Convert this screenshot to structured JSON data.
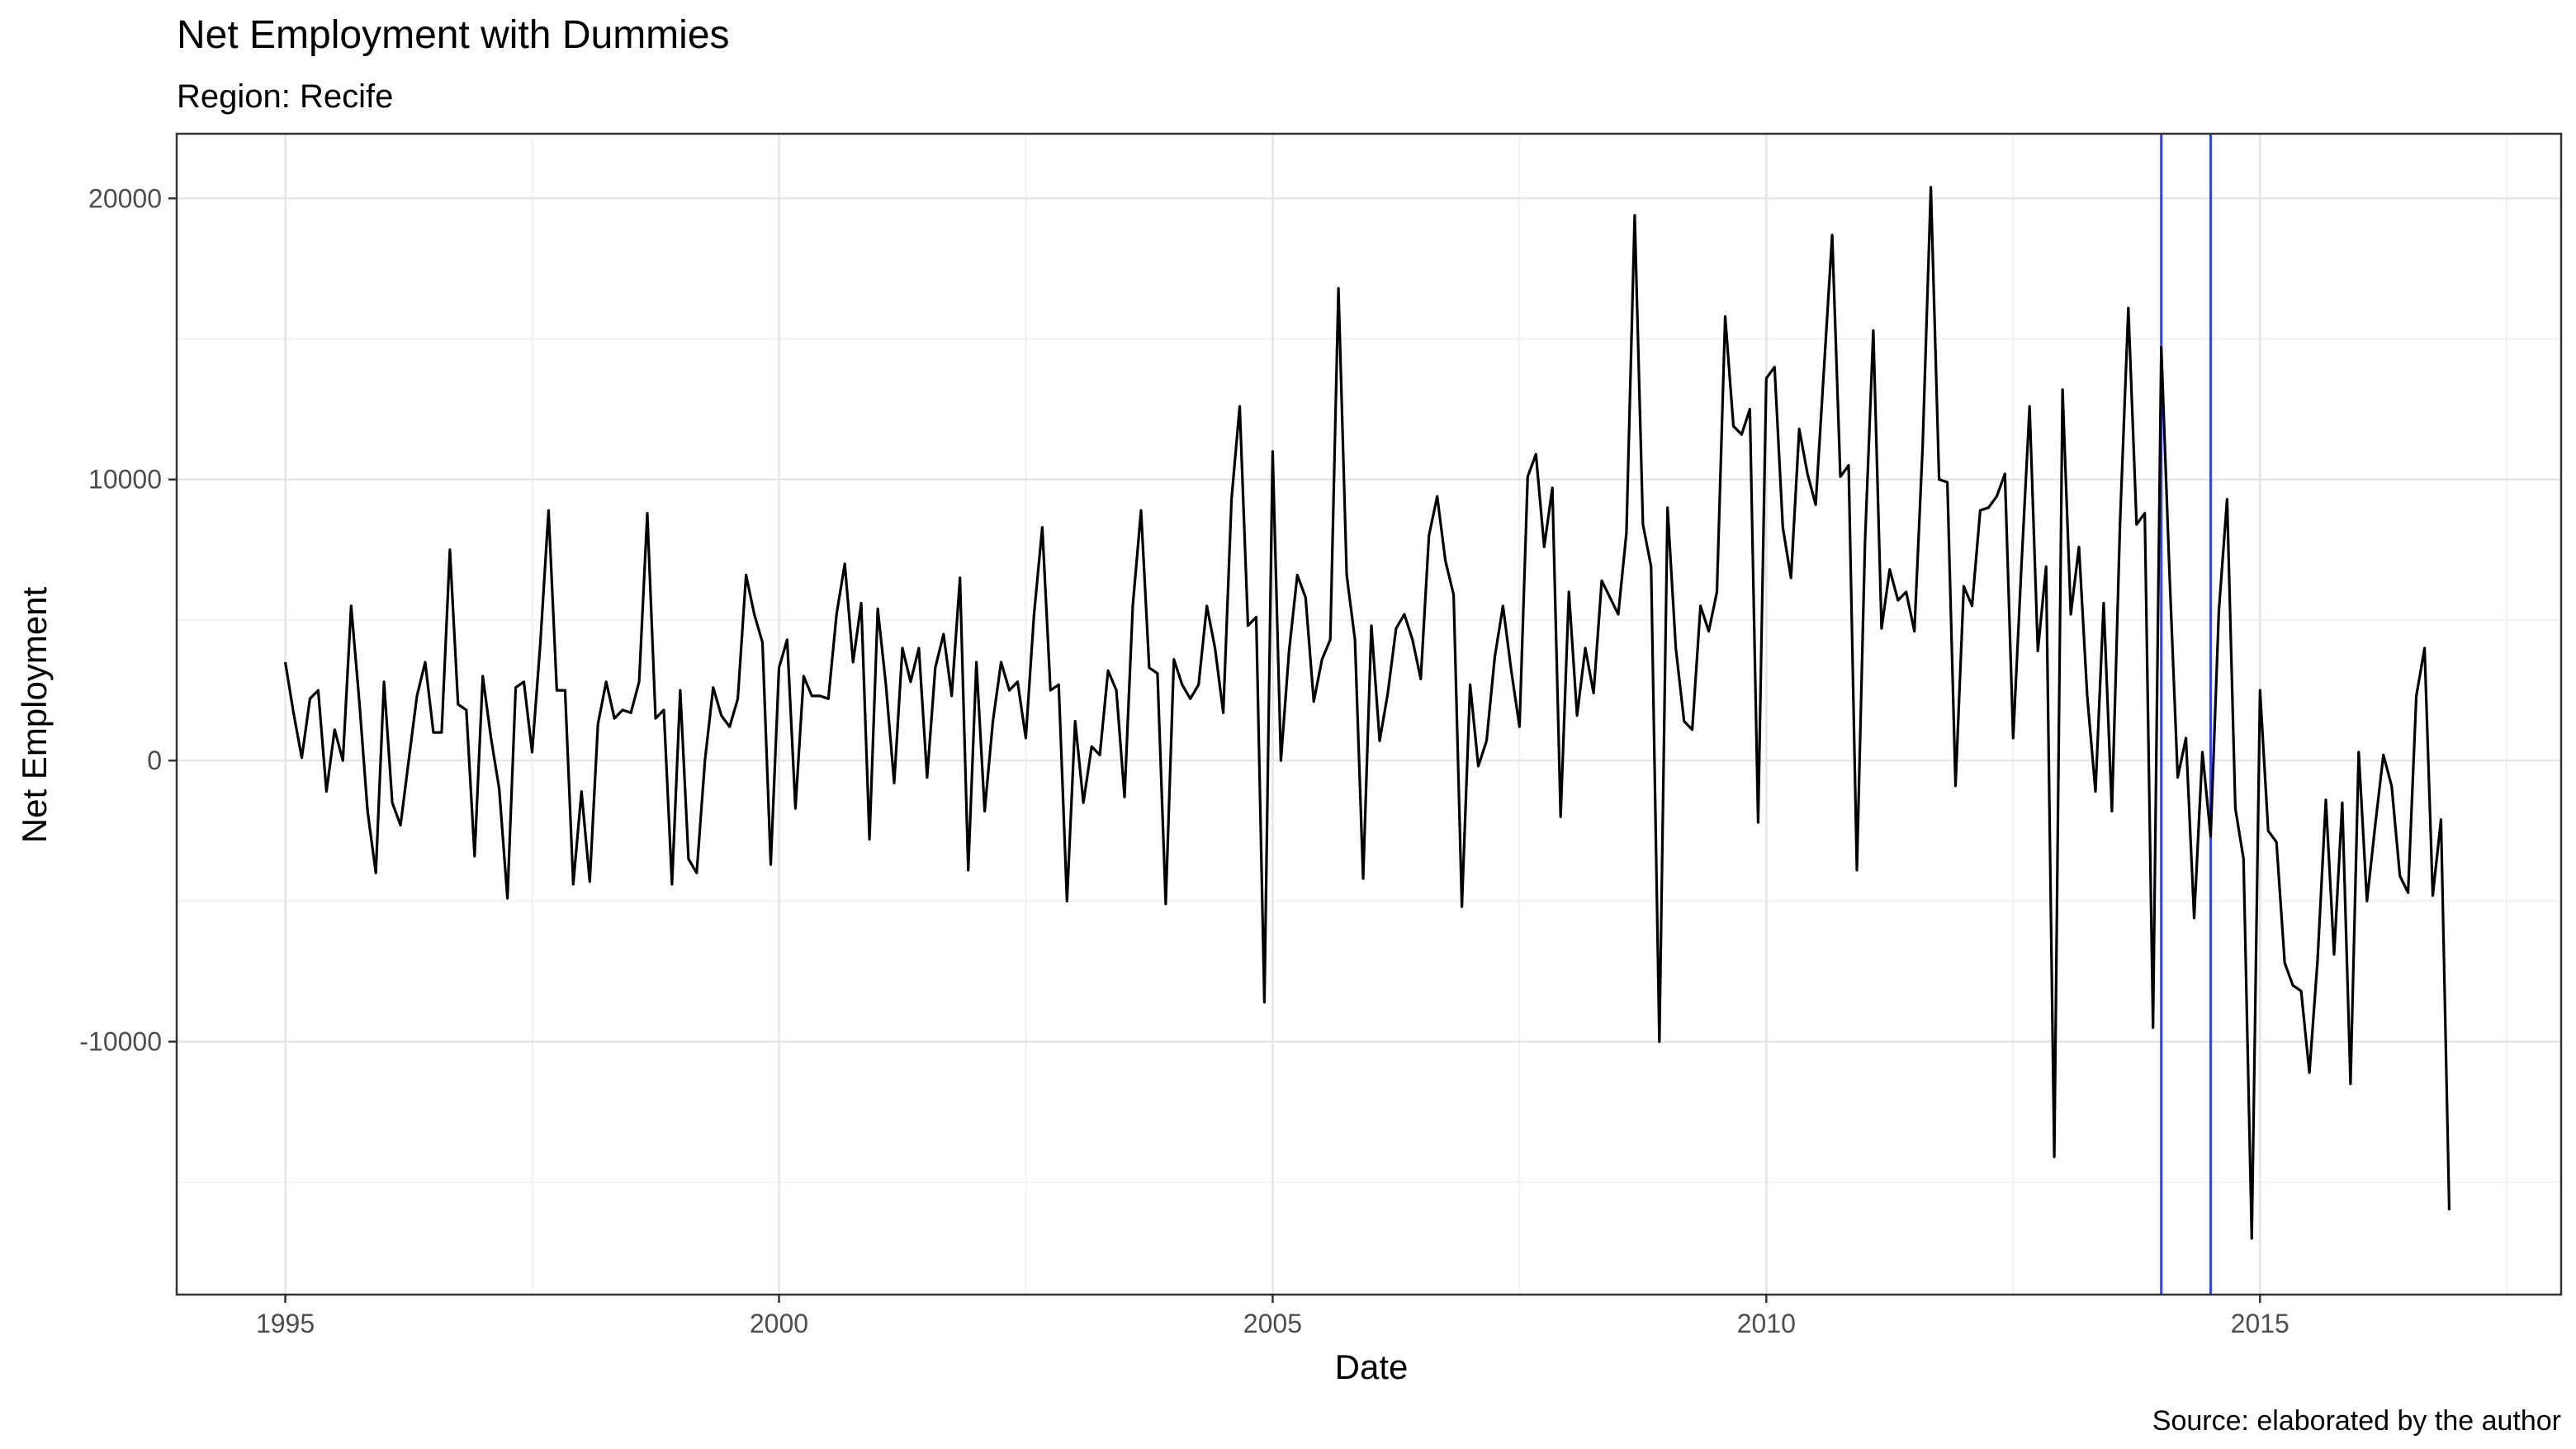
{
  "chart_data": {
    "type": "line",
    "title": "Net Employment with Dummies",
    "subtitle": "Region: Recife",
    "xlabel": "Date",
    "ylabel": "Net Employment",
    "caption": "Source: elaborated by the author",
    "xlim": [
      1993.9,
      2018.05
    ],
    "ylim": [
      -19000,
      22300
    ],
    "x_ticks": [
      1995,
      2000,
      2005,
      2010,
      2015
    ],
    "y_ticks": [
      -10000,
      0,
      10000,
      20000
    ],
    "grid": true,
    "line_color": "#000000",
    "vline_color": "#3344ee",
    "dummy_lines": [
      2014.0,
      2014.5
    ],
    "x_start": 1995.0,
    "x_step": 0.08333333,
    "series": [
      {
        "values": [
          3500,
          1700,
          100,
          2200,
          2500,
          -1100,
          1100,
          0,
          5500,
          2100,
          -1800,
          -4000,
          2800,
          -1500,
          -2300,
          0,
          2300,
          3500,
          1000,
          1000,
          7500,
          2000,
          1800,
          -3400,
          3000,
          800,
          -1000,
          -4900,
          2600,
          2800,
          300,
          4200,
          8900,
          2500,
          2500,
          -4400,
          -1100,
          -4300,
          1300,
          2800,
          1500,
          1800,
          1700,
          2800,
          8800,
          1500,
          1800,
          -4400,
          2500,
          -3500,
          -4000,
          0,
          2600,
          1600,
          1200,
          2200,
          6600,
          5200,
          4200,
          -3700,
          3300,
          4300,
          -1700,
          3000,
          2300,
          2300,
          2200,
          5200,
          7000,
          3500,
          5600,
          -2800,
          5400,
          2700,
          -800,
          4000,
          2800,
          4000,
          -600,
          3300,
          4500,
          2300,
          6500,
          -3900,
          3500,
          -1800,
          1400,
          3500,
          2500,
          2800,
          800,
          5200,
          8300,
          2500,
          2700,
          -5000,
          1400,
          -1500,
          500,
          200,
          3200,
          2500,
          -1300,
          5500,
          8900,
          3300,
          3100,
          -5100,
          3600,
          2700,
          2200,
          2700,
          5500,
          4000,
          1700,
          9300,
          12600,
          4800,
          5100,
          -8600,
          11000,
          0,
          3900,
          6600,
          5800,
          2100,
          3600,
          4300,
          16800,
          6600,
          4300,
          -4200,
          4800,
          700,
          2400,
          4700,
          5200,
          4300,
          2900,
          8000,
          9400,
          7100,
          5900,
          -5200,
          2700,
          -200,
          700,
          3700,
          5500,
          3200,
          1200,
          10100,
          10900,
          7600,
          9700,
          -2000,
          6000,
          1600,
          4000,
          2400,
          6400,
          5800,
          5200,
          8100,
          19400,
          8400,
          6900,
          -10000,
          9000,
          4000,
          1400,
          1100,
          5500,
          4600,
          6000,
          15800,
          11900,
          11600,
          12500,
          -2200,
          13600,
          14000,
          8300,
          6500,
          11800,
          10200,
          9100,
          13900,
          18700,
          10100,
          10500,
          -3900,
          7800,
          15300,
          4700,
          6800,
          5700,
          6000,
          4600,
          11200,
          20400,
          10000,
          9900,
          -900,
          6200,
          5500,
          8900,
          9000,
          9400,
          10200,
          800,
          6900,
          12600,
          3900,
          6900,
          -14100,
          13200,
          5200,
          7600,
          2300,
          -1100,
          5600,
          -1800,
          8500,
          16100,
          8400,
          8800,
          -9500,
          14700,
          6700,
          -600,
          800,
          -5600,
          300,
          -2700,
          5300,
          9300,
          -1700,
          -3500,
          -17000,
          2500,
          -2500,
          -2900,
          -7200,
          -8000,
          -8200,
          -11100,
          -7100,
          -1400,
          -6900,
          -1500,
          -11500,
          300,
          -5000,
          -2300,
          200,
          -900,
          -4100,
          -4700,
          2300,
          4000,
          -4800,
          -2100,
          -16000
        ]
      }
    ]
  }
}
